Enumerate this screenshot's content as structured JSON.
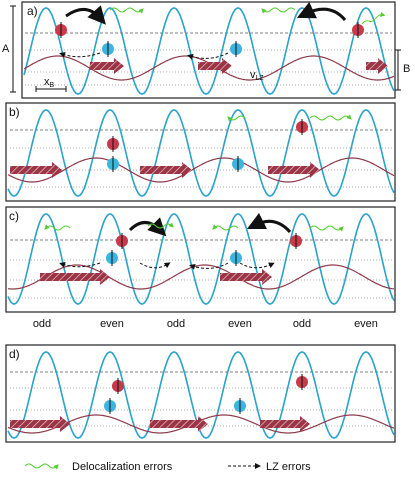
{
  "panels": [
    {
      "id": "a",
      "label": "a)"
    },
    {
      "id": "b",
      "label": "b)"
    },
    {
      "id": "c",
      "label": "c)"
    },
    {
      "id": "d",
      "label": "d)"
    }
  ],
  "annotations": {
    "amplitude_A": "A",
    "amplitude_B": "B",
    "x_B": "x",
    "x_B_sub": "B",
    "v_LZ": "v",
    "v_LZ_sub": "LZ"
  },
  "site_labels": [
    "odd",
    "even",
    "odd",
    "even",
    "odd",
    "even"
  ],
  "legend": {
    "delocalization": "Delocalization errors",
    "lz": "LZ errors"
  },
  "colors": {
    "lattice": "#2aa3c8",
    "moving_wave": "#8e3a4a",
    "arrow_fill": "#9b3445",
    "particle_red": "#c73a4a",
    "particle_blue": "#3bb4e0",
    "wavy_error": "#55cc33",
    "dashed_level": "#555555"
  }
}
